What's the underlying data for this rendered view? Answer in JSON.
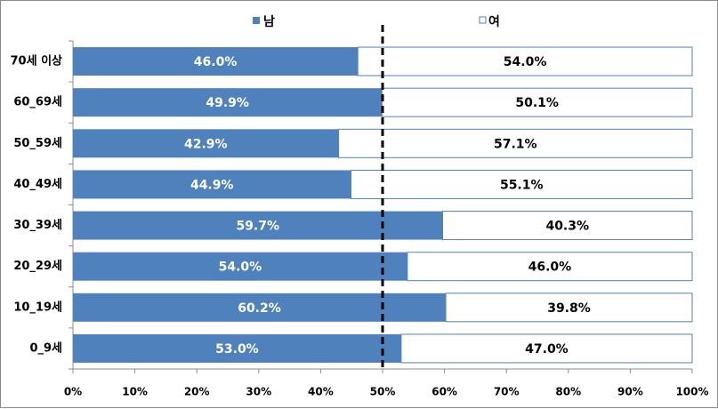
{
  "chart_data": {
    "type": "bar",
    "orientation": "horizontal",
    "stacked": true,
    "percent_stacked": true,
    "categories": [
      "70세 이상",
      "60_69세",
      "50_59세",
      "40_49세",
      "30_39세",
      "20_29세",
      "10_19세",
      "0_9세"
    ],
    "series": [
      {
        "name": "남",
        "color": "#4f81bd",
        "values": [
          46.0,
          49.9,
          42.9,
          44.9,
          59.7,
          54.0,
          60.2,
          53.0
        ],
        "labels": [
          "46.0%",
          "49.9%",
          "42.9%",
          "44.9%",
          "59.7%",
          "54.0%",
          "60.2%",
          "53.0%"
        ]
      },
      {
        "name": "여",
        "color": "#ffffff",
        "values": [
          54.0,
          50.1,
          57.1,
          55.1,
          40.3,
          46.0,
          39.8,
          47.0
        ],
        "labels": [
          "54.0%",
          "50.1%",
          "57.1%",
          "55.1%",
          "40.3%",
          "46.0%",
          "39.8%",
          "47.0%"
        ]
      }
    ],
    "xlim": [
      0,
      100
    ],
    "x_ticks": [
      "0%",
      "10%",
      "20%",
      "30%",
      "40%",
      "50%",
      "60%",
      "70%",
      "80%",
      "90%",
      "100%"
    ],
    "reference_line": {
      "value": 50,
      "style": "dashed"
    },
    "legend_position": "top",
    "grid": false,
    "title": "",
    "xlabel": "",
    "ylabel": ""
  }
}
